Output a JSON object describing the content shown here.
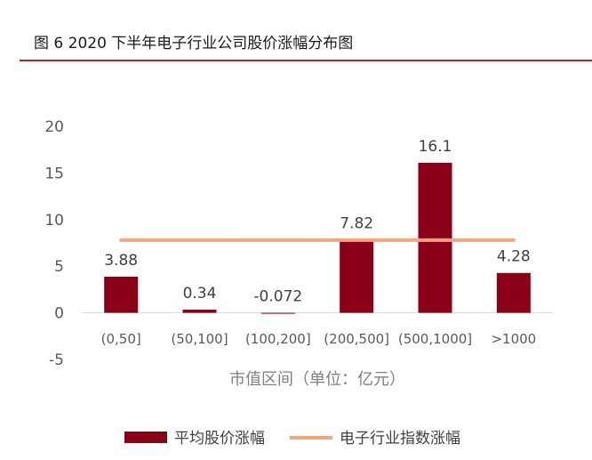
{
  "figure_title": "图 6 2020 下半年电子行业公司股价涨幅分布图",
  "colors": {
    "bar": "#8b0016",
    "line": "#f4a582",
    "title_rule": "#b22222"
  },
  "chart_data": {
    "type": "bar",
    "categories": [
      "(0,50]",
      "(50,100]",
      "(100,200]",
      "(200,500]",
      "(500,1000]",
      ">1000"
    ],
    "series": [
      {
        "name": "平均股价涨幅",
        "type": "bar",
        "values": [
          3.88,
          0.34,
          -0.072,
          7.82,
          16.1,
          4.28
        ],
        "labels": [
          "3.88",
          "0.34",
          "-0.072",
          "7.82",
          "16.1",
          "4.28"
        ]
      },
      {
        "name": "电子行业指数涨幅",
        "type": "line",
        "values": [
          7.8,
          7.8,
          7.8,
          7.8,
          7.8,
          7.8
        ]
      }
    ],
    "xlabel": "市值区间（单位：亿元）",
    "ylabel": "",
    "ylim": [
      -5,
      20
    ],
    "yticks": [
      20,
      15,
      10,
      5,
      0,
      -5
    ],
    "grid": false,
    "legend_position": "bottom"
  }
}
